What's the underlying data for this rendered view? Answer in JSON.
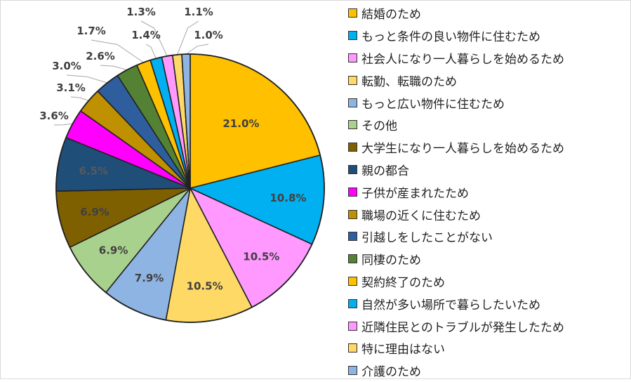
{
  "chart_data": {
    "type": "pie",
    "title": "",
    "legend_position": "right",
    "slices": [
      {
        "label": "結婚のため",
        "value": 21.0,
        "display": "21.0%",
        "color": "#FFC000",
        "label_color": "#404040"
      },
      {
        "label": "もっと条件の良い物件に住むため",
        "value": 10.8,
        "display": "10.8%",
        "color": "#00B0F0",
        "label_color": "#404040"
      },
      {
        "label": "社会人になり一人暮らしを始めるため",
        "value": 10.5,
        "display": "10.5%",
        "color": "#FF99FF",
        "label_color": "#404040"
      },
      {
        "label": "転勤、転職のため",
        "value": 10.5,
        "display": "10.5%",
        "color": "#FFD966",
        "label_color": "#404040"
      },
      {
        "label": "もっと広い物件に住むため",
        "value": 7.9,
        "display": "7.9%",
        "color": "#8EB4E3",
        "label_color": "#404040"
      },
      {
        "label": "その他",
        "value": 6.9,
        "display": "6.9%",
        "color": "#A9D18E",
        "label_color": "#404040"
      },
      {
        "label": "大学生になり一人暮らしを始めるため",
        "value": 6.9,
        "display": "6.9%",
        "color": "#7F6000",
        "label_color": "#404040"
      },
      {
        "label": "親の都合",
        "value": 6.5,
        "display": "6.5%",
        "color": "#1F4E79",
        "label_color": "#595959"
      },
      {
        "label": "子供が産まれたため",
        "value": 3.6,
        "display": "3.6%",
        "color": "#FF00FF",
        "label_color": "#404040"
      },
      {
        "label": "職場の近くに住むため",
        "value": 3.1,
        "display": "3.1%",
        "color": "#BF9000",
        "label_color": "#404040"
      },
      {
        "label": "引越しをしたことがない",
        "value": 3.0,
        "display": "3.0%",
        "color": "#2E5E9E",
        "label_color": "#404040"
      },
      {
        "label": "同棲のため",
        "value": 2.6,
        "display": "2.6%",
        "color": "#548235",
        "label_color": "#404040"
      },
      {
        "label": "契約終了のため",
        "value": 1.7,
        "display": "1.7%",
        "color": "#FFC000",
        "label_color": "#404040"
      },
      {
        "label": "自然が多い場所で暮らしたいため",
        "value": 1.4,
        "display": "1.4%",
        "color": "#00B0F0",
        "label_color": "#404040"
      },
      {
        "label": "近隣住民とのトラブルが発生したため",
        "value": 1.3,
        "display": "1.3%",
        "color": "#FF99FF",
        "label_color": "#404040"
      },
      {
        "label": "特に理由はない",
        "value": 1.1,
        "display": "1.1%",
        "color": "#FFD966",
        "label_color": "#404040"
      },
      {
        "label": "介護のため",
        "value": 1.0,
        "display": "1.0%",
        "color": "#8EB4E3",
        "label_color": "#404040"
      }
    ]
  }
}
